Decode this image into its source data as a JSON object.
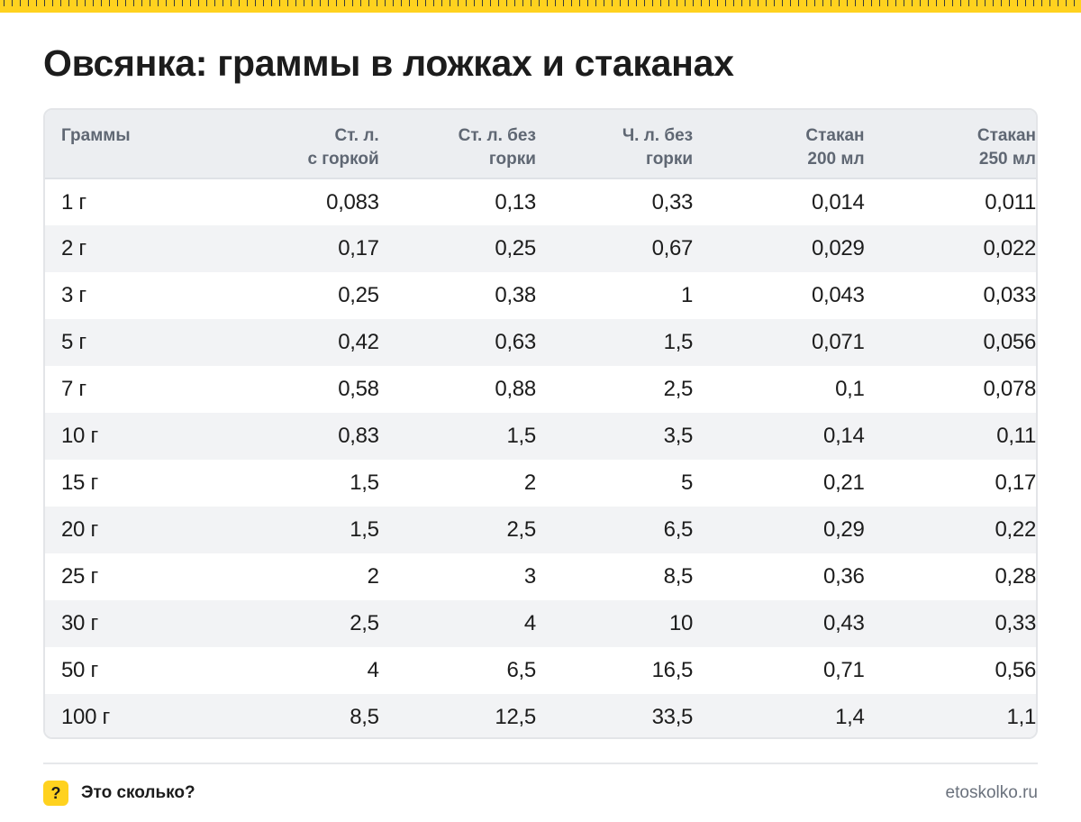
{
  "page": {
    "title": "Овсянка: граммы в ложках и стаканах",
    "accent_color": "#ffd21f",
    "ruler_icon": "ruler-ticks"
  },
  "table": {
    "headers": [
      [
        "Граммы"
      ],
      [
        "Ст. л.",
        "с горкой"
      ],
      [
        "Ст. л. без",
        "горки"
      ],
      [
        "Ч. л. без",
        "горки"
      ],
      [
        "Стакан",
        "200 мл"
      ],
      [
        "Стакан",
        "250 мл"
      ]
    ],
    "rows": [
      [
        "1 г",
        "0,083",
        "0,13",
        "0,33",
        "0,014",
        "0,011"
      ],
      [
        "2 г",
        "0,17",
        "0,25",
        "0,67",
        "0,029",
        "0,022"
      ],
      [
        "3 г",
        "0,25",
        "0,38",
        "1",
        "0,043",
        "0,033"
      ],
      [
        "5 г",
        "0,42",
        "0,63",
        "1,5",
        "0,071",
        "0,056"
      ],
      [
        "7 г",
        "0,58",
        "0,88",
        "2,5",
        "0,1",
        "0,078"
      ],
      [
        "10 г",
        "0,83",
        "1,5",
        "3,5",
        "0,14",
        "0,11"
      ],
      [
        "15 г",
        "1,5",
        "2",
        "5",
        "0,21",
        "0,17"
      ],
      [
        "20 г",
        "1,5",
        "2,5",
        "6,5",
        "0,29",
        "0,22"
      ],
      [
        "25 г",
        "2",
        "3",
        "8,5",
        "0,36",
        "0,28"
      ],
      [
        "30 г",
        "2,5",
        "4",
        "10",
        "0,43",
        "0,33"
      ],
      [
        "50 г",
        "4",
        "6,5",
        "16,5",
        "0,71",
        "0,56"
      ],
      [
        "100 г",
        "8,5",
        "12,5",
        "33,5",
        "1,4",
        "1,1"
      ]
    ]
  },
  "footer": {
    "badge_text": "?",
    "brand": "Это сколько?",
    "site": "etoskolko.ru"
  }
}
